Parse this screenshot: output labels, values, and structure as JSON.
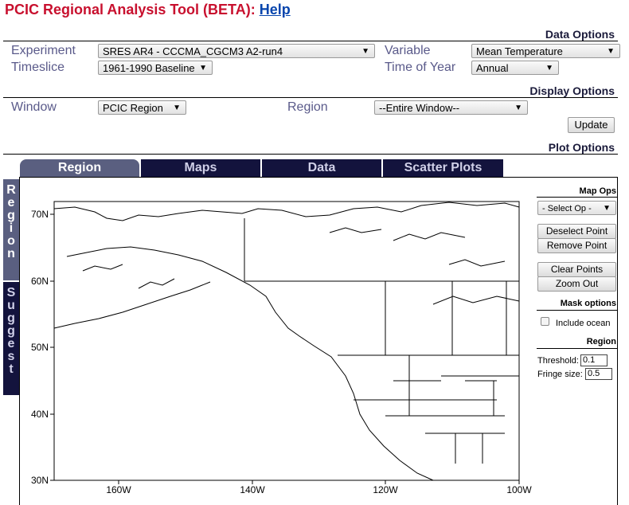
{
  "header": {
    "title": "PCIC Regional Analysis Tool (BETA):",
    "help_link": "Help"
  },
  "data_options": {
    "heading": "Data Options",
    "experiment_label": "Experiment",
    "experiment_value": "SRES AR4 - CCCMA_CGCM3 A2-run4",
    "variable_label": "Variable",
    "variable_value": "Mean Temperature",
    "timeslice_label": "Timeslice",
    "timeslice_value": "1961-1990 Baseline",
    "time_of_year_label": "Time of Year",
    "time_of_year_value": "Annual"
  },
  "display_options": {
    "heading": "Display Options",
    "window_label": "Window",
    "window_value": "PCIC Region",
    "region_label": "Region",
    "region_value": "--Entire Window--",
    "update_button": "Update"
  },
  "plot_options": {
    "heading": "Plot Options",
    "tabs": [
      "Region",
      "Maps",
      "Data",
      "Scatter Plots"
    ],
    "active_tab": "Region",
    "vertical_tabs": [
      {
        "label": "Region",
        "letters": [
          "R",
          "e",
          "g",
          "i",
          "o",
          "n"
        ]
      },
      {
        "label": "Suggest",
        "letters": [
          "S",
          "u",
          "g",
          "g",
          "e",
          "s",
          "t"
        ]
      }
    ]
  },
  "side_panel": {
    "map_ops_heading": "Map Ops",
    "select_op": "- Select Op -",
    "deselect_point": "Deselect Point",
    "remove_point": "Remove Point",
    "clear_points": "Clear Points",
    "zoom_out": "Zoom Out",
    "mask_heading": "Mask options",
    "include_ocean_label": "Include ocean",
    "region_heading": "Region",
    "threshold_label": "Threshold:",
    "threshold_value": "0.1",
    "fringe_label": "Fringe size:",
    "fringe_value": "0.5"
  },
  "map": {
    "y_ticks": [
      "70N",
      "60N",
      "50N",
      "40N",
      "30N"
    ],
    "x_ticks": [
      "160W",
      "140W",
      "120W",
      "100W"
    ]
  },
  "colors": {
    "title_red": "#c8102e",
    "link_blue": "#0645ad",
    "tab_navy": "#13133d",
    "tab_active": "#5a5f80",
    "label_slate": "#5a5a8a"
  }
}
